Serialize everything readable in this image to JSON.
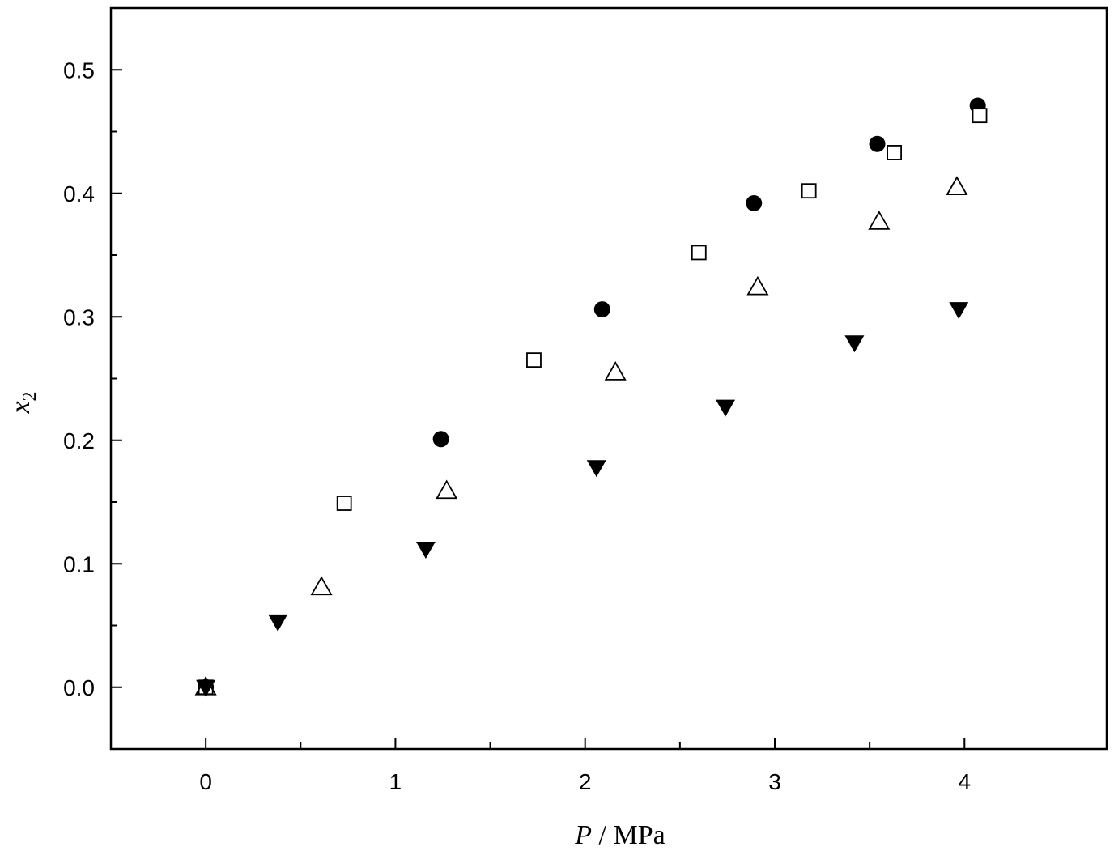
{
  "chart_data": {
    "type": "scatter",
    "xlabel": {
      "symbol": "P",
      "rest": " / MPa"
    },
    "ylabel": {
      "symbol": "x",
      "subscript": "2"
    },
    "xlim": [
      -0.5,
      4.75
    ],
    "ylim": [
      -0.05,
      0.55
    ],
    "x_ticks": [
      0,
      1,
      2,
      3,
      4
    ],
    "x_tick_labels": [
      "0",
      "1",
      "2",
      "3",
      "4"
    ],
    "x_minor_ticks": [
      0.5,
      1.5,
      2.5,
      3.5
    ],
    "y_ticks": [
      0.0,
      0.1,
      0.2,
      0.3,
      0.4,
      0.5
    ],
    "y_tick_labels": [
      "0.0",
      "0.1",
      "0.2",
      "0.3",
      "0.4",
      "0.5"
    ],
    "y_minor_ticks": [
      0.05,
      0.15,
      0.25,
      0.35,
      0.45
    ],
    "grid": false,
    "legend": "none",
    "series": [
      {
        "marker": "filled-circle",
        "color": "#000000",
        "points": [
          [
            0.0,
            0.0
          ],
          [
            1.24,
            0.201
          ],
          [
            2.09,
            0.306
          ],
          [
            2.89,
            0.392
          ],
          [
            3.54,
            0.44
          ],
          [
            4.07,
            0.471
          ]
        ]
      },
      {
        "marker": "open-square",
        "color": "#000000",
        "points": [
          [
            0.0,
            0.0
          ],
          [
            0.73,
            0.149
          ],
          [
            1.73,
            0.265
          ],
          [
            2.6,
            0.352
          ],
          [
            3.18,
            0.402
          ],
          [
            3.63,
            0.433
          ],
          [
            4.08,
            0.463
          ]
        ]
      },
      {
        "marker": "open-triangle-up",
        "color": "#000000",
        "points": [
          [
            0.0,
            0.0
          ],
          [
            0.61,
            0.081
          ],
          [
            1.27,
            0.159
          ],
          [
            2.16,
            0.255
          ],
          [
            2.91,
            0.324
          ],
          [
            3.55,
            0.377
          ],
          [
            3.96,
            0.405
          ]
        ]
      },
      {
        "marker": "filled-triangle-down",
        "color": "#000000",
        "points": [
          [
            0.0,
            0.0
          ],
          [
            0.38,
            0.053
          ],
          [
            1.16,
            0.112
          ],
          [
            2.06,
            0.178
          ],
          [
            2.74,
            0.227
          ],
          [
            3.42,
            0.279
          ],
          [
            3.97,
            0.306
          ]
        ]
      }
    ]
  }
}
